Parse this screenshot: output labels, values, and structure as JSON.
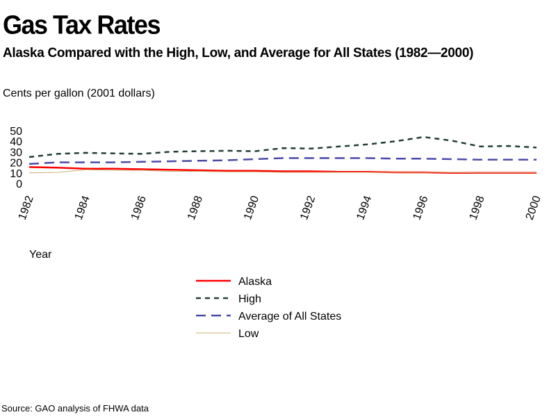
{
  "header": {
    "title": "Gas Tax Rates",
    "subtitle": "Alaska Compared with the High, Low, and Average for All States (1982—2000)",
    "units": "Cents per gallon (2001 dollars)"
  },
  "footer": {
    "source": "Source: GAO analysis of FHWA data"
  },
  "chart_data": {
    "type": "line",
    "title": "Gas Tax Rates",
    "subtitle": "Alaska Compared with the High, Low, and Average for All States (1982—2000)",
    "ylabel": "Cents per gallon (2001 dollars)",
    "xlabel": "Year",
    "x": [
      1982,
      1983,
      1984,
      1985,
      1986,
      1987,
      1988,
      1989,
      1990,
      1991,
      1992,
      1993,
      1994,
      1995,
      1996,
      1997,
      1998,
      1999,
      2000
    ],
    "xticks": [
      "1982",
      "1984",
      "1986",
      "1988",
      "1990",
      "1992",
      "1994",
      "1996",
      "1998",
      "2000"
    ],
    "yticks": [
      "0",
      "10",
      "20",
      "30",
      "40",
      "50"
    ],
    "ylim": [
      0,
      50
    ],
    "grid": false,
    "legend_position": "bottom-center",
    "series": [
      {
        "name": "Alaska",
        "color": "#ff0000",
        "dash": "solid",
        "values": [
          15.5,
          15,
          14,
          14,
          13.5,
          13,
          12.5,
          12,
          12,
          11.5,
          11.5,
          11,
          11,
          10.5,
          10.5,
          10,
          10,
          10,
          10
        ]
      },
      {
        "name": "High",
        "color": "#1f3f2f",
        "dash": "dotted",
        "values": [
          25,
          28,
          29,
          28.5,
          28,
          30,
          30.5,
          31,
          30.5,
          33.5,
          33,
          35,
          37,
          40,
          44,
          40.5,
          35,
          35.5,
          34
        ]
      },
      {
        "name": "Average of All States",
        "color": "#4a4aa8",
        "dash": "dashed",
        "values": [
          18.5,
          20,
          20,
          20,
          20.5,
          21,
          21.5,
          22,
          23,
          24,
          24,
          24,
          24,
          23.5,
          23.5,
          23,
          22.5,
          22.5,
          22.5
        ]
      },
      {
        "name": "Low",
        "color": "#c8b070",
        "dash": "thin",
        "values": [
          10,
          10.5,
          13,
          12.5,
          12.5,
          11.5,
          11.5,
          11,
          11,
          10.5,
          10.5,
          10.5,
          10.5,
          10.5,
          10.5,
          10.5,
          10,
          10,
          10
        ]
      }
    ]
  }
}
